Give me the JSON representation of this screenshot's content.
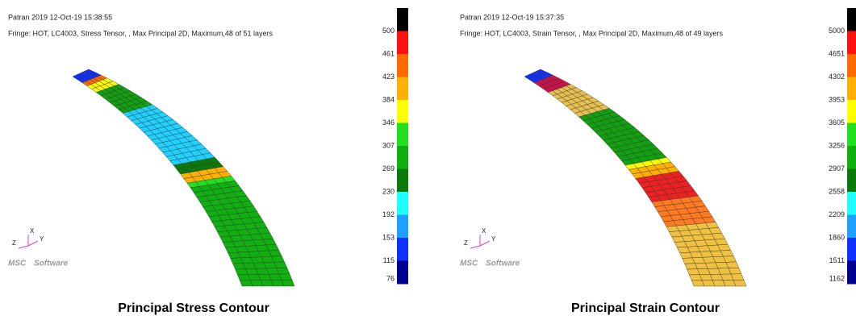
{
  "panels": [
    {
      "header": [
        "Patran 2019 12-Oct-19 15:38:55",
        "Fringe: HOT, LC4003, Stress Tensor, , Max Principal 2D, Maximum,48 of 51 layers"
      ],
      "legend": {
        "labels": [
          "500",
          "461",
          "423",
          "384",
          "346",
          "307",
          "269",
          "230",
          "192",
          "153",
          "115",
          "76"
        ],
        "colors": [
          "#000000",
          "#ff1010",
          "#ff6a00",
          "#ffb000",
          "#ffff00",
          "#20e020",
          "#10b010",
          "#0a7a0a",
          "#20ffff",
          "#1ea0ff",
          "#1030ff",
          "#000090"
        ]
      },
      "triad": [
        "X",
        "Y",
        "Z"
      ],
      "logo": [
        "MSC",
        "Software"
      ],
      "caption": "Principal Stress Contour"
    },
    {
      "header": [
        "Patran 2019 12-Oct-19 15:37:35",
        "Fringe: HOT, LC4003, Strain Tensor, , Max Principal 2D, Maximum,48 of 49 layers"
      ],
      "legend": {
        "labels": [
          "5000",
          "4651",
          "4302",
          "3953",
          "3605",
          "3256",
          "2907",
          "2558",
          "2209",
          "1860",
          "1511",
          "1162"
        ],
        "colors": [
          "#000000",
          "#ff1010",
          "#ff6a00",
          "#ffb000",
          "#ffff00",
          "#20e020",
          "#10b010",
          "#0a7a0a",
          "#20ffff",
          "#1ea0ff",
          "#1030ff",
          "#000090"
        ]
      },
      "triad": [
        "X",
        "Y",
        "Z"
      ],
      "logo": [
        "MSC",
        "Software"
      ],
      "caption": "Principal Strain Contour"
    }
  ]
}
